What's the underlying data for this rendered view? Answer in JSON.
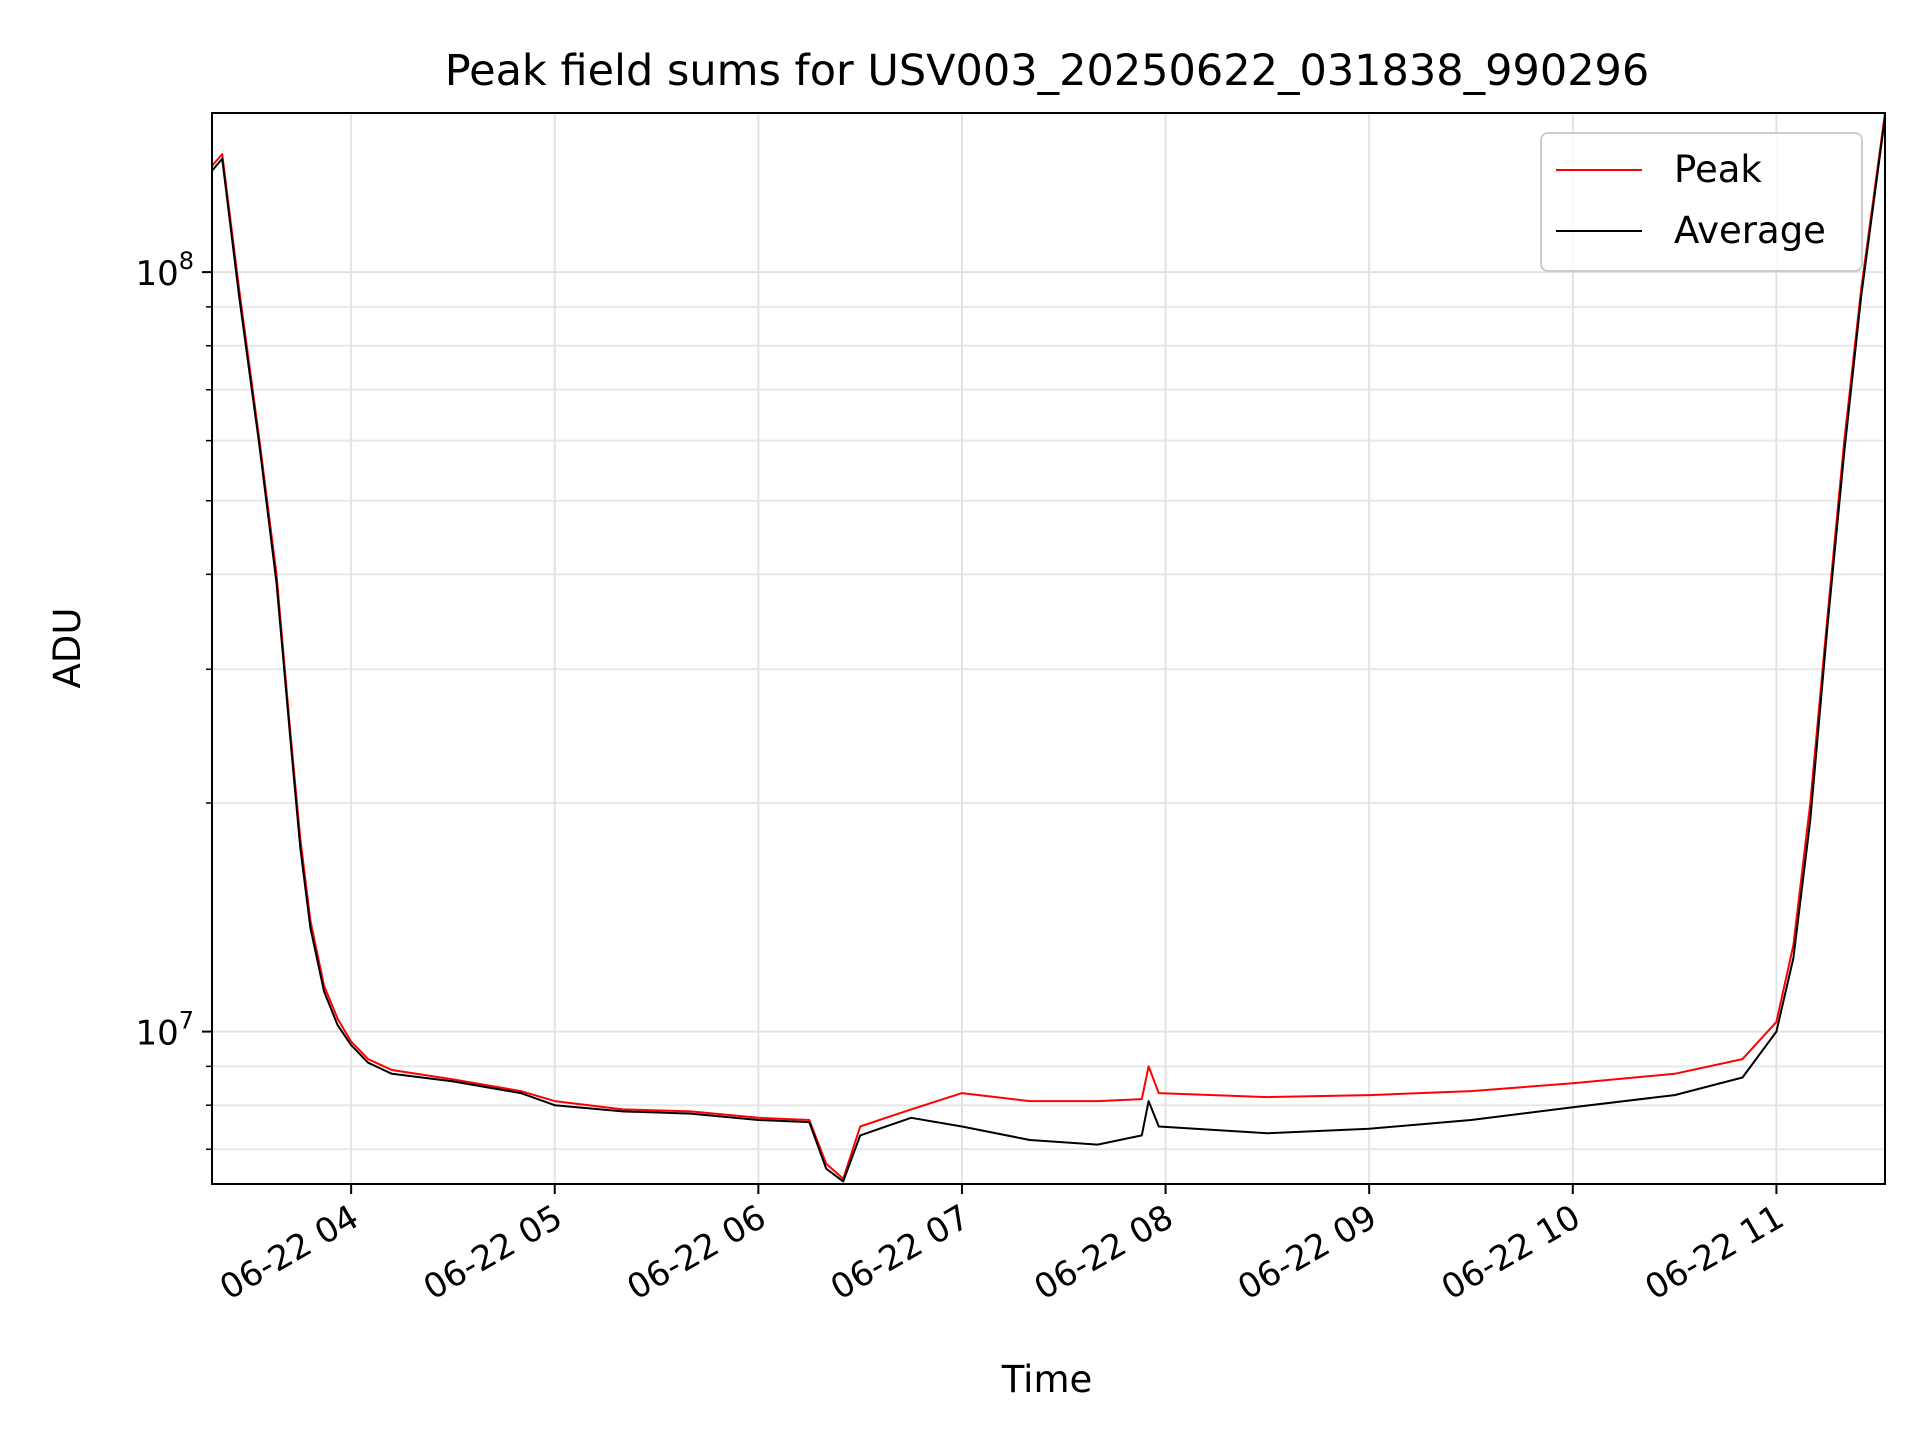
{
  "chart_data": {
    "type": "line",
    "title": "Peak field sums for USV003_20250622_031838_990296",
    "xlabel": "Time",
    "ylabel": "ADU",
    "yscale": "log",
    "grid": true,
    "legend_position": "top-right",
    "xlim": [
      "2025-06-22 03:19",
      "2025-06-22 11:32"
    ],
    "ylim": [
      6300000,
      162000000
    ],
    "x_ticks": [
      {
        "value": "2025-06-22 04:00",
        "label": "06-22 04"
      },
      {
        "value": "2025-06-22 05:00",
        "label": "06-22 05"
      },
      {
        "value": "2025-06-22 06:00",
        "label": "06-22 06"
      },
      {
        "value": "2025-06-22 07:00",
        "label": "06-22 07"
      },
      {
        "value": "2025-06-22 08:00",
        "label": "06-22 08"
      },
      {
        "value": "2025-06-22 09:00",
        "label": "06-22 09"
      },
      {
        "value": "2025-06-22 10:00",
        "label": "06-22 10"
      },
      {
        "value": "2025-06-22 11:00",
        "label": "06-22 11"
      }
    ],
    "y_ticks": [
      {
        "value": 10000000,
        "base": "10",
        "exp": "7"
      },
      {
        "value": 100000000,
        "base": "10",
        "exp": "8"
      }
    ],
    "series": [
      {
        "name": "Peak",
        "color": "#ff0000",
        "points": [
          [
            "2025-06-22 03:19",
            138000000
          ],
          [
            "2025-06-22 03:22",
            143000000
          ],
          [
            "2025-06-22 03:27",
            95000000
          ],
          [
            "2025-06-22 03:33",
            60000000
          ],
          [
            "2025-06-22 03:38",
            40000000
          ],
          [
            "2025-06-22 03:42",
            25000000
          ],
          [
            "2025-06-22 03:45",
            18000000
          ],
          [
            "2025-06-22 03:48",
            14000000
          ],
          [
            "2025-06-22 03:52",
            11500000
          ],
          [
            "2025-06-22 03:56",
            10400000
          ],
          [
            "2025-06-22 04:00",
            9700000
          ],
          [
            "2025-06-22 04:05",
            9200000
          ],
          [
            "2025-06-22 04:12",
            8900000
          ],
          [
            "2025-06-22 04:30",
            8650000
          ],
          [
            "2025-06-22 04:50",
            8350000
          ],
          [
            "2025-06-22 05:00",
            8100000
          ],
          [
            "2025-06-22 05:20",
            7900000
          ],
          [
            "2025-06-22 05:40",
            7850000
          ],
          [
            "2025-06-22 06:00",
            7700000
          ],
          [
            "2025-06-22 06:15",
            7650000
          ],
          [
            "2025-06-22 06:20",
            6700000
          ],
          [
            "2025-06-22 06:25",
            6400000
          ],
          [
            "2025-06-22 06:30",
            7500000
          ],
          [
            "2025-06-22 06:45",
            7900000
          ],
          [
            "2025-06-22 07:00",
            8300000
          ],
          [
            "2025-06-22 07:20",
            8100000
          ],
          [
            "2025-06-22 07:40",
            8100000
          ],
          [
            "2025-06-22 07:53",
            8150000
          ],
          [
            "2025-06-22 07:55",
            9000000
          ],
          [
            "2025-06-22 07:58",
            8300000
          ],
          [
            "2025-06-22 08:30",
            8200000
          ],
          [
            "2025-06-22 09:00",
            8250000
          ],
          [
            "2025-06-22 09:30",
            8350000
          ],
          [
            "2025-06-22 10:00",
            8550000
          ],
          [
            "2025-06-22 10:30",
            8800000
          ],
          [
            "2025-06-22 10:50",
            9200000
          ],
          [
            "2025-06-22 11:00",
            10300000
          ],
          [
            "2025-06-22 11:05",
            13000000
          ],
          [
            "2025-06-22 11:10",
            20000000
          ],
          [
            "2025-06-22 11:15",
            35000000
          ],
          [
            "2025-06-22 11:20",
            60000000
          ],
          [
            "2025-06-22 11:25",
            95000000
          ],
          [
            "2025-06-22 11:32",
            162000000
          ]
        ]
      },
      {
        "name": "Average",
        "color": "#000000",
        "points": [
          [
            "2025-06-22 03:19",
            136000000
          ],
          [
            "2025-06-22 03:22",
            141000000
          ],
          [
            "2025-06-22 03:27",
            93000000
          ],
          [
            "2025-06-22 03:33",
            59000000
          ],
          [
            "2025-06-22 03:38",
            39000000
          ],
          [
            "2025-06-22 03:42",
            24500000
          ],
          [
            "2025-06-22 03:45",
            17500000
          ],
          [
            "2025-06-22 03:48",
            13700000
          ],
          [
            "2025-06-22 03:52",
            11300000
          ],
          [
            "2025-06-22 03:56",
            10200000
          ],
          [
            "2025-06-22 04:00",
            9600000
          ],
          [
            "2025-06-22 04:05",
            9100000
          ],
          [
            "2025-06-22 04:12",
            8800000
          ],
          [
            "2025-06-22 04:30",
            8600000
          ],
          [
            "2025-06-22 04:50",
            8300000
          ],
          [
            "2025-06-22 05:00",
            8000000
          ],
          [
            "2025-06-22 05:20",
            7850000
          ],
          [
            "2025-06-22 05:40",
            7800000
          ],
          [
            "2025-06-22 06:00",
            7650000
          ],
          [
            "2025-06-22 06:15",
            7600000
          ],
          [
            "2025-06-22 06:20",
            6600000
          ],
          [
            "2025-06-22 06:25",
            6350000
          ],
          [
            "2025-06-22 06:30",
            7300000
          ],
          [
            "2025-06-22 06:45",
            7700000
          ],
          [
            "2025-06-22 07:00",
            7500000
          ],
          [
            "2025-06-22 07:20",
            7200000
          ],
          [
            "2025-06-22 07:40",
            7100000
          ],
          [
            "2025-06-22 07:53",
            7300000
          ],
          [
            "2025-06-22 07:55",
            8100000
          ],
          [
            "2025-06-22 07:58",
            7500000
          ],
          [
            "2025-06-22 08:30",
            7350000
          ],
          [
            "2025-06-22 09:00",
            7450000
          ],
          [
            "2025-06-22 09:30",
            7650000
          ],
          [
            "2025-06-22 10:00",
            7950000
          ],
          [
            "2025-06-22 10:30",
            8250000
          ],
          [
            "2025-06-22 10:50",
            8700000
          ],
          [
            "2025-06-22 11:00",
            10000000
          ],
          [
            "2025-06-22 11:05",
            12500000
          ],
          [
            "2025-06-22 11:10",
            19000000
          ],
          [
            "2025-06-22 11:15",
            34000000
          ],
          [
            "2025-06-22 11:20",
            58000000
          ],
          [
            "2025-06-22 11:25",
            93000000
          ],
          [
            "2025-06-22 11:32",
            160000000
          ]
        ]
      }
    ]
  }
}
